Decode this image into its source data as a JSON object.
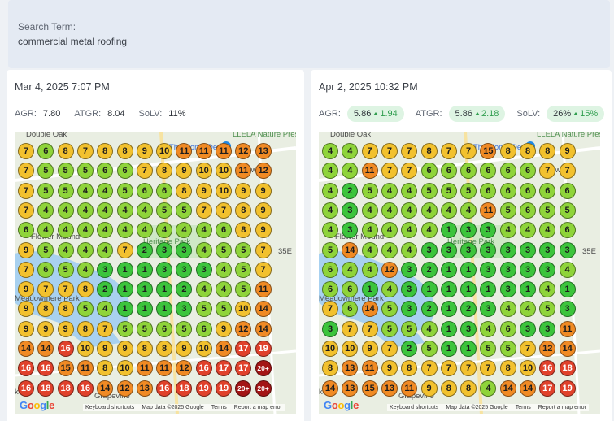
{
  "search": {
    "label": "Search Term:",
    "value": "commercial metal roofing"
  },
  "panels": [
    {
      "date": "Mar 4, 2025 7:07 PM",
      "metrics": {
        "agr_label": "AGR:",
        "agr_value": "7.80",
        "atgr_label": "ATGR:",
        "atgr_value": "8.04",
        "solv_label": "SoLV:",
        "solv_value": "11%"
      },
      "grid": [
        [
          "7",
          "6",
          "8",
          "7",
          "8",
          "8",
          "9",
          "10",
          "11",
          "11",
          "11",
          "12",
          "13"
        ],
        [
          "7",
          "5",
          "5",
          "5",
          "6",
          "6",
          "7",
          "8",
          "9",
          "10",
          "10",
          "11",
          "12"
        ],
        [
          "7",
          "5",
          "5",
          "4",
          "4",
          "5",
          "6",
          "6",
          "8",
          "9",
          "10",
          "9",
          "9"
        ],
        [
          "7",
          "4",
          "4",
          "4",
          "4",
          "4",
          "4",
          "5",
          "5",
          "7",
          "7",
          "8",
          "9"
        ],
        [
          "6",
          "4",
          "4",
          "4",
          "4",
          "4",
          "4",
          "4",
          "4",
          "4",
          "6",
          "8",
          "9"
        ],
        [
          "9",
          "5",
          "4",
          "4",
          "4",
          "7",
          "2",
          "3",
          "3",
          "4",
          "5",
          "5",
          "7"
        ],
        [
          "7",
          "6",
          "5",
          "4",
          "3",
          "1",
          "1",
          "3",
          "3",
          "3",
          "4",
          "5",
          "7"
        ],
        [
          "9",
          "7",
          "7",
          "8",
          "2",
          "1",
          "1",
          "1",
          "2",
          "4",
          "4",
          "5",
          "11"
        ],
        [
          "9",
          "8",
          "8",
          "5",
          "4",
          "1",
          "1",
          "1",
          "3",
          "5",
          "5",
          "10",
          "14"
        ],
        [
          "9",
          "9",
          "9",
          "8",
          "7",
          "5",
          "5",
          "6",
          "5",
          "6",
          "9",
          "12",
          "14"
        ],
        [
          "14",
          "14",
          "16",
          "10",
          "9",
          "9",
          "8",
          "8",
          "9",
          "10",
          "14",
          "17",
          "19"
        ],
        [
          "16",
          "16",
          "15",
          "11",
          "8",
          "10",
          "11",
          "11",
          "12",
          "16",
          "17",
          "17",
          "20+"
        ],
        [
          "16",
          "18",
          "18",
          "16",
          "14",
          "12",
          "13",
          "16",
          "18",
          "19",
          "19",
          "20+",
          "20+"
        ]
      ],
      "map_labels": {
        "top_left": "Double Oak",
        "nature": "LLELA Nature Preserve",
        "home_depot": "The Home Depot",
        "lewisville": "Lewisvill",
        "flower_mound": "Flower Mound",
        "heritage_park": "Heritage Park",
        "meadowmere": "Meadowmere Park",
        "grapevine": "Grapevine",
        "ke": "ke",
        "route": "35E",
        "google": "Google",
        "footer_shortcuts": "Keyboard shortcuts",
        "footer_mapdata": "Map data ©2025 Google",
        "footer_terms": "Terms",
        "footer_report": "Report a map error"
      }
    },
    {
      "date": "Apr 2, 2025 10:32 PM",
      "metrics": {
        "agr_label": "AGR:",
        "agr_value": "5.86",
        "agr_change": "1.94",
        "atgr_label": "ATGR:",
        "atgr_value": "5.86",
        "atgr_change": "2.18",
        "solv_label": "SoLV:",
        "solv_value": "26%",
        "solv_change": "15%"
      },
      "grid": [
        [
          "4",
          "4",
          "7",
          "7",
          "7",
          "8",
          "7",
          "7",
          "15",
          "8",
          "8",
          "8",
          "9"
        ],
        [
          "4",
          "4",
          "11",
          "7",
          "7",
          "6",
          "6",
          "6",
          "6",
          "6",
          "6",
          "7",
          "7"
        ],
        [
          "4",
          "2",
          "5",
          "4",
          "4",
          "5",
          "5",
          "5",
          "6",
          "6",
          "6",
          "6",
          "6"
        ],
        [
          "4",
          "3",
          "4",
          "4",
          "4",
          "4",
          "4",
          "4",
          "11",
          "5",
          "6",
          "5",
          "5"
        ],
        [
          "4",
          "3",
          "4",
          "4",
          "4",
          "4",
          "1",
          "3",
          "3",
          "4",
          "4",
          "4",
          "6"
        ],
        [
          "5",
          "14",
          "4",
          "4",
          "4",
          "3",
          "3",
          "3",
          "3",
          "3",
          "3",
          "3",
          "3"
        ],
        [
          "6",
          "4",
          "4",
          "12",
          "3",
          "2",
          "1",
          "1",
          "3",
          "3",
          "3",
          "3",
          "4"
        ],
        [
          "6",
          "6",
          "1",
          "4",
          "3",
          "1",
          "1",
          "1",
          "1",
          "3",
          "1",
          "4",
          "1"
        ],
        [
          "7",
          "6",
          "14",
          "5",
          "3",
          "2",
          "1",
          "2",
          "3",
          "4",
          "4",
          "5",
          "3"
        ],
        [
          "3",
          "7",
          "7",
          "5",
          "5",
          "4",
          "1",
          "3",
          "4",
          "6",
          "3",
          "3",
          "11"
        ],
        [
          "10",
          "10",
          "9",
          "7",
          "2",
          "5",
          "1",
          "1",
          "5",
          "5",
          "7",
          "12",
          "14"
        ],
        [
          "8",
          "13",
          "11",
          "9",
          "8",
          "7",
          "7",
          "7",
          "7",
          "8",
          "10",
          "16",
          "18"
        ],
        [
          "14",
          "13",
          "15",
          "13",
          "11",
          "9",
          "8",
          "8",
          "4",
          "14",
          "14",
          "17",
          "19"
        ]
      ],
      "map_labels": {
        "top_left": "Double Oak",
        "nature": "LLELA Nature Preserve",
        "home_depot": "The Home Depot",
        "lewisville": "Lewisvill",
        "flower_mound": "Flower Mound",
        "heritage_park": "Heritage Park",
        "meadowmere": "Meadowmere Park",
        "grapevine": "Grapevine",
        "ke": "ke",
        "route": "35E",
        "google": "Google",
        "footer_shortcuts": "Keyboard shortcuts",
        "footer_mapdata": "Map data ©2025 Google",
        "footer_terms": "Terms",
        "footer_report": "Report a map error"
      }
    }
  ],
  "colors": {
    "rank_1_3": "#3cc43c",
    "rank_4_6": "#8fd43a",
    "rank_7_10": "#f2c12e",
    "rank_11_15": "#f08a24",
    "rank_16_19": "#e0412b",
    "rank_20_plus": "#a31515",
    "change_positive": "#2f9e4f",
    "water": "#a8d1f0",
    "park": "#cfe8c7"
  }
}
